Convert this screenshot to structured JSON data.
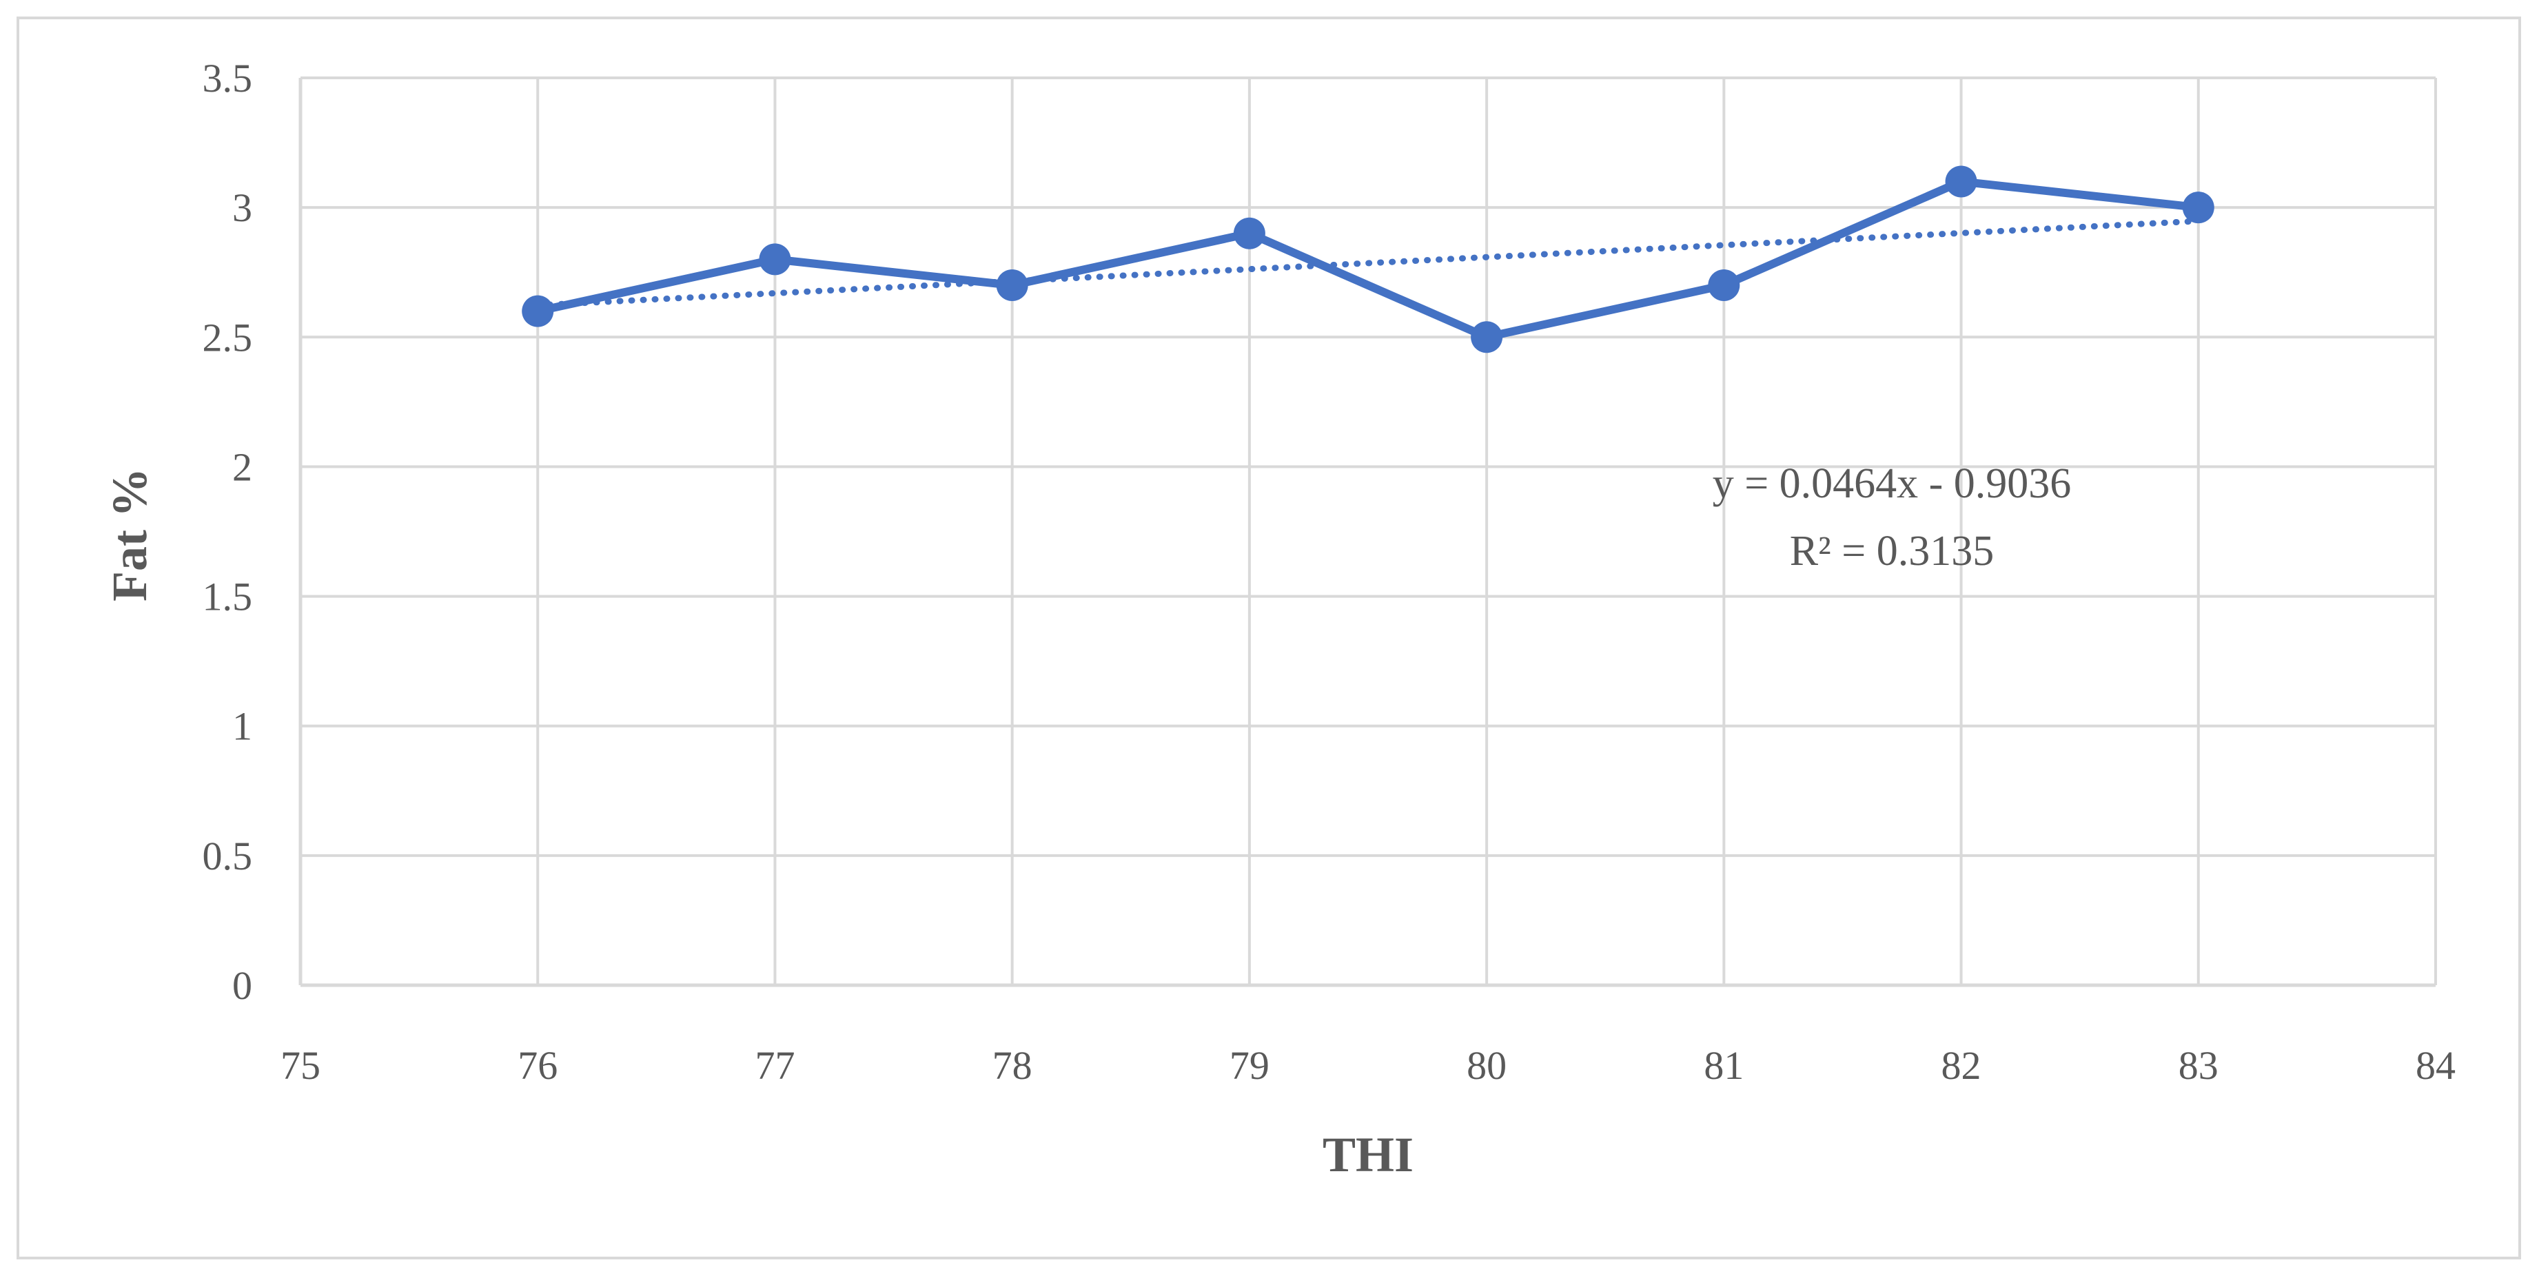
{
  "chart_data": {
    "type": "line",
    "title": "",
    "xlabel": "THI",
    "ylabel": "Fat %",
    "xlim": [
      75,
      84
    ],
    "ylim": [
      0,
      3.5
    ],
    "x_ticks": [
      "75",
      "76",
      "77",
      "78",
      "79",
      "80",
      "81",
      "82",
      "83",
      "84"
    ],
    "y_ticks": [
      "0",
      "0.5",
      "1",
      "1.5",
      "2",
      "2.5",
      "3",
      "3.5"
    ],
    "grid": true,
    "legend": "none",
    "series": [
      {
        "x": [
          76,
          77,
          78,
          79,
          80,
          81,
          82,
          83
        ],
        "y": [
          2.6,
          2.8,
          2.7,
          2.9,
          2.5,
          2.7,
          3.1,
          3.0
        ],
        "color": "#4472C4",
        "marker": "circle"
      }
    ],
    "trendline": {
      "type": "linear",
      "slope": 0.0464,
      "intercept": -0.9036,
      "x_range": [
        76,
        83
      ],
      "style": "dotted",
      "color": "#4472C4",
      "equation": "y = 0.0464x - 0.9036",
      "r_squared": "R² = 0.3135"
    }
  },
  "colors": {
    "grid": "#D9D9D9",
    "text": "#595959",
    "border": "#D9D9D9",
    "series": "#4472C4"
  }
}
